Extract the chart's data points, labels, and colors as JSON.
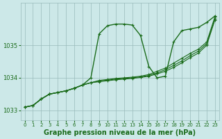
{
  "bg_color": "#cce8e8",
  "grid_color": "#99bbbb",
  "line_color": "#1a6b1a",
  "marker_color": "#1a6b1a",
  "xlabel": "Graphe pression niveau de la mer (hPa)",
  "xlabel_fontsize": 7,
  "yticks": [
    1033,
    1034,
    1035
  ],
  "ylim": [
    1032.7,
    1036.3
  ],
  "xlim": [
    -0.5,
    23.5
  ],
  "xticks": [
    0,
    1,
    2,
    3,
    4,
    5,
    6,
    7,
    8,
    9,
    10,
    11,
    12,
    13,
    14,
    15,
    16,
    17,
    18,
    19,
    20,
    21,
    22,
    23
  ],
  "series": [
    [
      1033.1,
      1033.15,
      1033.35,
      1033.5,
      1033.55,
      1033.6,
      1033.68,
      1033.78,
      1034.0,
      1035.35,
      1035.6,
      1035.65,
      1035.65,
      1035.62,
      1035.3,
      1034.35,
      1034.0,
      1034.05,
      1035.1,
      1035.45,
      1035.5,
      1035.55,
      1035.7,
      1035.9
    ],
    [
      1033.1,
      1033.15,
      1033.35,
      1033.5,
      1033.55,
      1033.6,
      1033.68,
      1033.78,
      1033.85,
      1033.92,
      1033.95,
      1033.98,
      1034.0,
      1034.02,
      1034.05,
      1034.1,
      1034.2,
      1034.3,
      1034.45,
      1034.6,
      1034.75,
      1034.88,
      1035.1,
      1035.88
    ],
    [
      1033.1,
      1033.15,
      1033.35,
      1033.5,
      1033.55,
      1033.6,
      1033.68,
      1033.78,
      1033.85,
      1033.9,
      1033.93,
      1033.96,
      1033.98,
      1034.0,
      1034.03,
      1034.07,
      1034.15,
      1034.25,
      1034.38,
      1034.52,
      1034.68,
      1034.82,
      1035.05,
      1035.82
    ],
    [
      1033.1,
      1033.15,
      1033.35,
      1033.5,
      1033.55,
      1033.6,
      1033.68,
      1033.78,
      1033.85,
      1033.88,
      1033.91,
      1033.94,
      1033.96,
      1033.98,
      1034.01,
      1034.05,
      1034.12,
      1034.2,
      1034.32,
      1034.46,
      1034.62,
      1034.76,
      1035.0,
      1035.78
    ]
  ]
}
